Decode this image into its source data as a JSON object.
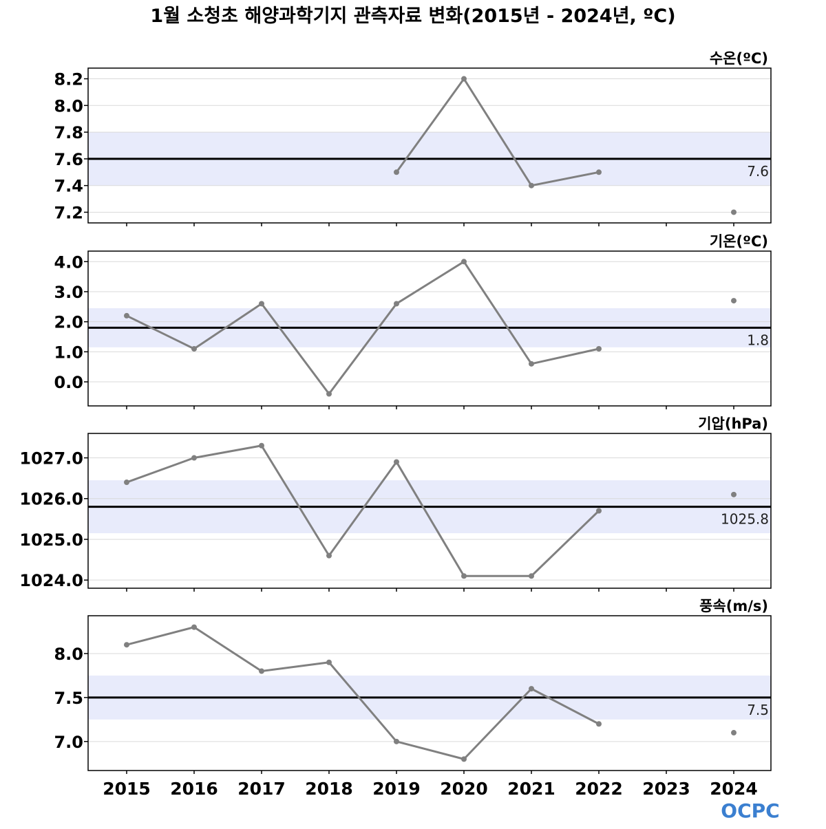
{
  "title": "1월 소청초 해양과학기지 관측자료 변화(2015년 - 2024년, ºC)",
  "logo": "OCPC",
  "colors": {
    "line": "#808080",
    "mean": "#000000",
    "band": "#e8ebfb",
    "grid": "#d9d9d9"
  },
  "chart_data": [
    {
      "type": "line",
      "title": "수온(ºC)",
      "x": [
        2015,
        2016,
        2017,
        2018,
        2019,
        2020,
        2021,
        2022,
        2023,
        2024
      ],
      "values": [
        null,
        null,
        null,
        null,
        7.5,
        8.2,
        7.4,
        7.5,
        null,
        7.2
      ],
      "mean": 7.6,
      "mean_label": "7.6",
      "band": [
        7.4,
        7.8
      ],
      "ylim": [
        7.12,
        8.28
      ],
      "yticks": [
        7.2,
        7.4,
        7.6,
        7.8,
        8.0,
        8.2
      ],
      "ytick_labels": [
        "7.2",
        "7.4",
        "7.6",
        "7.8",
        "8.0",
        "8.2"
      ]
    },
    {
      "type": "line",
      "title": "기온(ºC)",
      "x": [
        2015,
        2016,
        2017,
        2018,
        2019,
        2020,
        2021,
        2022,
        2023,
        2024
      ],
      "values": [
        2.2,
        1.1,
        2.6,
        -0.4,
        2.6,
        4.0,
        0.6,
        1.1,
        null,
        2.7
      ],
      "mean": 1.8,
      "mean_label": "1.8",
      "band": [
        1.15,
        2.45
      ],
      "ylim": [
        -0.8,
        4.35
      ],
      "yticks": [
        0.0,
        1.0,
        2.0,
        3.0,
        4.0
      ],
      "ytick_labels": [
        "0.0",
        "1.0",
        "2.0",
        "3.0",
        "4.0"
      ]
    },
    {
      "type": "line",
      "title": "기압(hPa)",
      "x": [
        2015,
        2016,
        2017,
        2018,
        2019,
        2020,
        2021,
        2022,
        2023,
        2024
      ],
      "values": [
        1026.4,
        1027.0,
        1027.3,
        1024.6,
        1026.9,
        1024.1,
        1024.1,
        1025.7,
        null,
        1026.1
      ],
      "mean": 1025.8,
      "mean_label": "1025.8",
      "band": [
        1025.15,
        1026.45
      ],
      "ylim": [
        1023.8,
        1027.6
      ],
      "yticks": [
        1024.0,
        1025.0,
        1026.0,
        1027.0
      ],
      "ytick_labels": [
        "1024.0",
        "1025.0",
        "1026.0",
        "1027.0"
      ]
    },
    {
      "type": "line",
      "title": "풍속(m/s)",
      "x": [
        2015,
        2016,
        2017,
        2018,
        2019,
        2020,
        2021,
        2022,
        2023,
        2024
      ],
      "values": [
        8.1,
        8.3,
        7.8,
        7.9,
        7.0,
        6.8,
        7.6,
        7.2,
        null,
        7.1
      ],
      "mean": 7.5,
      "mean_label": "7.5",
      "band": [
        7.25,
        7.75
      ],
      "ylim": [
        6.67,
        8.43
      ],
      "yticks": [
        7.0,
        7.5,
        8.0
      ],
      "ytick_labels": [
        "7.0",
        "7.5",
        "8.0"
      ]
    }
  ],
  "x_tick_labels": [
    "2015",
    "2016",
    "2017",
    "2018",
    "2019",
    "2020",
    "2021",
    "2022",
    "2023",
    "2024"
  ]
}
